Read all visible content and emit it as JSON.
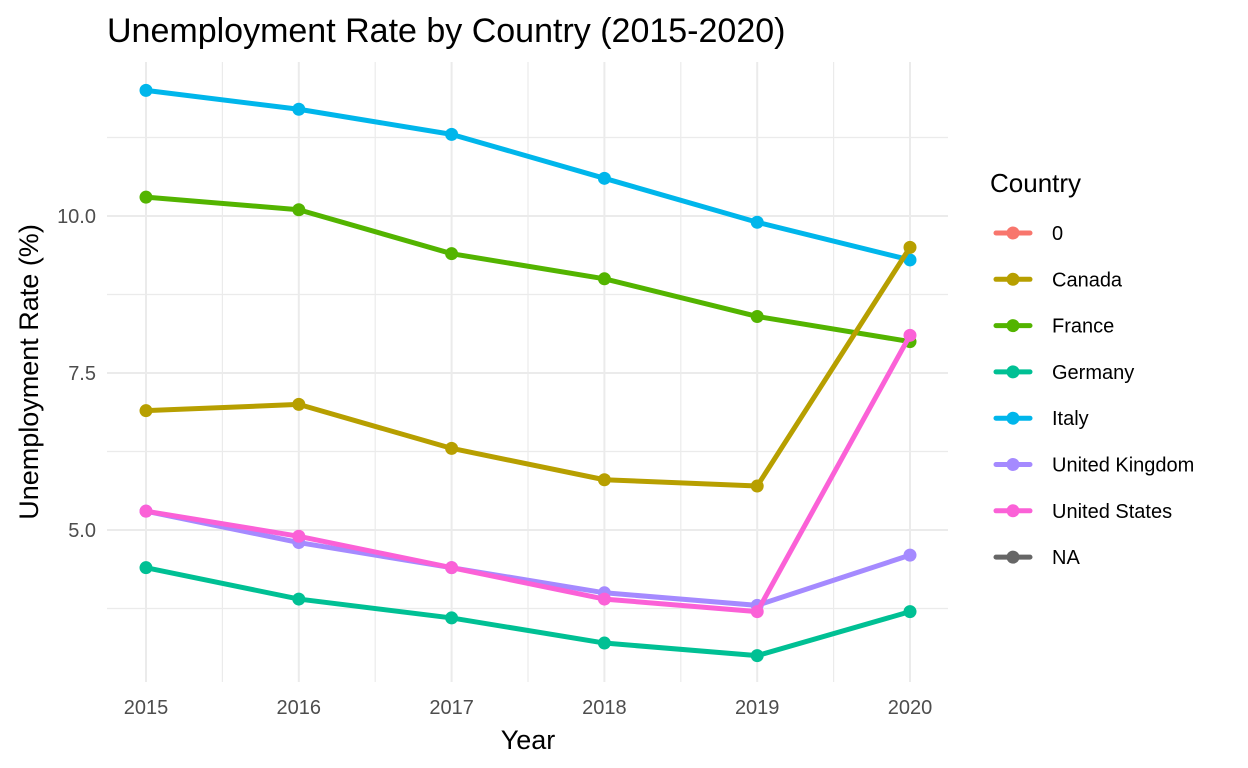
{
  "chart_data": {
    "type": "line",
    "title": "Unemployment Rate by Country (2015-2020)",
    "xlabel": "Year",
    "ylabel": "Unemployment Rate (%)",
    "x": [
      2015,
      2016,
      2017,
      2018,
      2019,
      2020
    ],
    "x_tick_labels": [
      "2015",
      "2016",
      "2017",
      "2018",
      "2019",
      "2020"
    ],
    "y_ticks": [
      5.0,
      7.5,
      10.0
    ],
    "y_tick_labels": [
      "5.0",
      "7.5",
      "10.0"
    ],
    "ylim": [
      2.6,
      12.5
    ],
    "grid": true,
    "legend_title": "Country",
    "legend_position": "right",
    "legend": [
      {
        "name": "0",
        "color": "#F8766D"
      },
      {
        "name": "Canada",
        "color": "#B79F00"
      },
      {
        "name": "France",
        "color": "#53B400"
      },
      {
        "name": "Germany",
        "color": "#00C094"
      },
      {
        "name": "Italy",
        "color": "#00B6EB"
      },
      {
        "name": "United Kingdom",
        "color": "#A58AFF"
      },
      {
        "name": "United States",
        "color": "#FB61D7"
      },
      {
        "name": "NA",
        "color": "#666666"
      }
    ],
    "series": [
      {
        "name": "Italy",
        "color": "#00B6EB",
        "values": [
          12.0,
          11.7,
          11.3,
          10.6,
          9.9,
          9.3
        ]
      },
      {
        "name": "France",
        "color": "#53B400",
        "values": [
          10.3,
          10.1,
          9.4,
          9.0,
          8.4,
          8.0
        ]
      },
      {
        "name": "Canada",
        "color": "#B79F00",
        "values": [
          6.9,
          7.0,
          6.3,
          5.8,
          5.7,
          9.5
        ]
      },
      {
        "name": "Germany",
        "color": "#00C094",
        "values": [
          4.4,
          3.9,
          3.6,
          3.2,
          3.0,
          3.7
        ]
      },
      {
        "name": "United Kingdom",
        "color": "#A58AFF",
        "values": [
          5.3,
          4.8,
          4.4,
          4.0,
          3.8,
          4.6
        ]
      },
      {
        "name": "United States",
        "color": "#FB61D7",
        "values": [
          5.3,
          4.9,
          4.4,
          3.9,
          3.7,
          8.1
        ]
      }
    ]
  }
}
